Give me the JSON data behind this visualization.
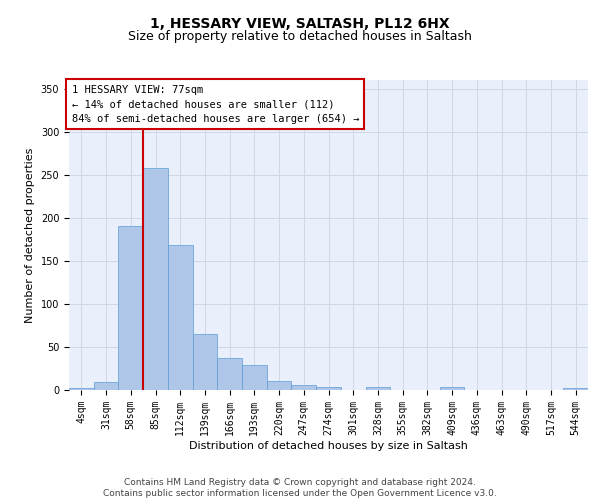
{
  "title_line1": "1, HESSARY VIEW, SALTASH, PL12 6HX",
  "title_line2": "Size of property relative to detached houses in Saltash",
  "xlabel": "Distribution of detached houses by size in Saltash",
  "ylabel": "Number of detached properties",
  "bin_labels": [
    "4sqm",
    "31sqm",
    "58sqm",
    "85sqm",
    "112sqm",
    "139sqm",
    "166sqm",
    "193sqm",
    "220sqm",
    "247sqm",
    "274sqm",
    "301sqm",
    "328sqm",
    "355sqm",
    "382sqm",
    "409sqm",
    "436sqm",
    "463sqm",
    "490sqm",
    "517sqm",
    "544sqm"
  ],
  "bar_values": [
    2,
    9,
    191,
    258,
    168,
    65,
    37,
    29,
    11,
    6,
    4,
    0,
    4,
    0,
    0,
    3,
    0,
    0,
    0,
    0,
    2
  ],
  "bar_color": "#aec7e8",
  "bar_edge_color": "#5b9bd5",
  "vline_x_index": 3,
  "vline_color": "#cc0000",
  "annotation_text": "1 HESSARY VIEW: 77sqm\n← 14% of detached houses are smaller (112)\n84% of semi-detached houses are larger (654) →",
  "annotation_box_color": "#ffffff",
  "annotation_edge_color": "#cc0000",
  "grid_color": "#d0d8e8",
  "background_color": "#eaf0fb",
  "ylim": [
    0,
    360
  ],
  "yticks": [
    0,
    50,
    100,
    150,
    200,
    250,
    300,
    350
  ],
  "footer_text": "Contains HM Land Registry data © Crown copyright and database right 2024.\nContains public sector information licensed under the Open Government Licence v3.0.",
  "title_fontsize": 10,
  "subtitle_fontsize": 9,
  "axis_label_fontsize": 8,
  "tick_fontsize": 7,
  "annotation_fontsize": 7.5,
  "footer_fontsize": 6.5
}
